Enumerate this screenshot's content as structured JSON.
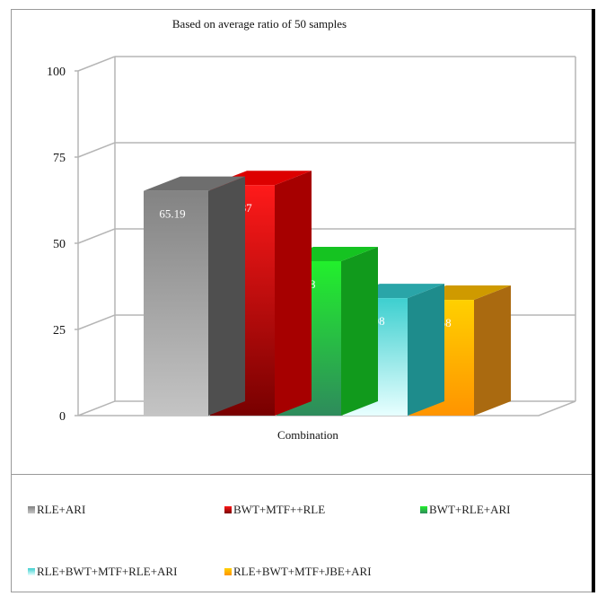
{
  "chart_data": {
    "type": "bar",
    "title": "Based on average ratio of 50 samples",
    "xlabel": "Combination",
    "ylabel": "",
    "categories": [
      "Combination"
    ],
    "ylim": [
      0,
      100
    ],
    "yticks": [
      0,
      25,
      50,
      75,
      100
    ],
    "grid": true,
    "legend_position": "bottom",
    "series": [
      {
        "name": "RLE+ARI",
        "values": [
          65.19
        ],
        "value_label": "65.19",
        "colors": {
          "front_top": "#838383",
          "front_bottom": "#c4c4c4",
          "side": "#4f4f4f",
          "top": "#6e6e6e"
        }
      },
      {
        "name": "BWT+MTF++RLE",
        "values": [
          66.87
        ],
        "value_label": "66.87",
        "colors": {
          "front_top": "#ff1a1a",
          "front_bottom": "#780000",
          "side": "#a60000",
          "top": "#dd0000"
        }
      },
      {
        "name": "BWT+RLE+ARI",
        "values": [
          44.8
        ],
        "value_label": "44.8",
        "colors": {
          "front_top": "#22f02c",
          "front_bottom": "#2e8b5c",
          "side": "#119a1c",
          "top": "#15c321"
        }
      },
      {
        "name": "RLE+BWT+MTF+RLE+ARI",
        "values": [
          34.08
        ],
        "value_label": "34.08",
        "colors": {
          "front_top": "#3dcfcf",
          "front_bottom": "#e8ffff",
          "side": "#1e8c8c",
          "top": "#2aa5a8"
        }
      },
      {
        "name": "RLE+BWT+MTF+JBE+ARI",
        "values": [
          33.58
        ],
        "value_label": "33.58",
        "colors": {
          "front_top": "#ffd000",
          "front_bottom": "#ff9400",
          "side": "#aa6a10",
          "top": "#cf9a00"
        }
      }
    ]
  },
  "colors": {
    "grid": "#b5b5b5",
    "frame": "#9a9a9a",
    "value_label": "#ffffff"
  }
}
